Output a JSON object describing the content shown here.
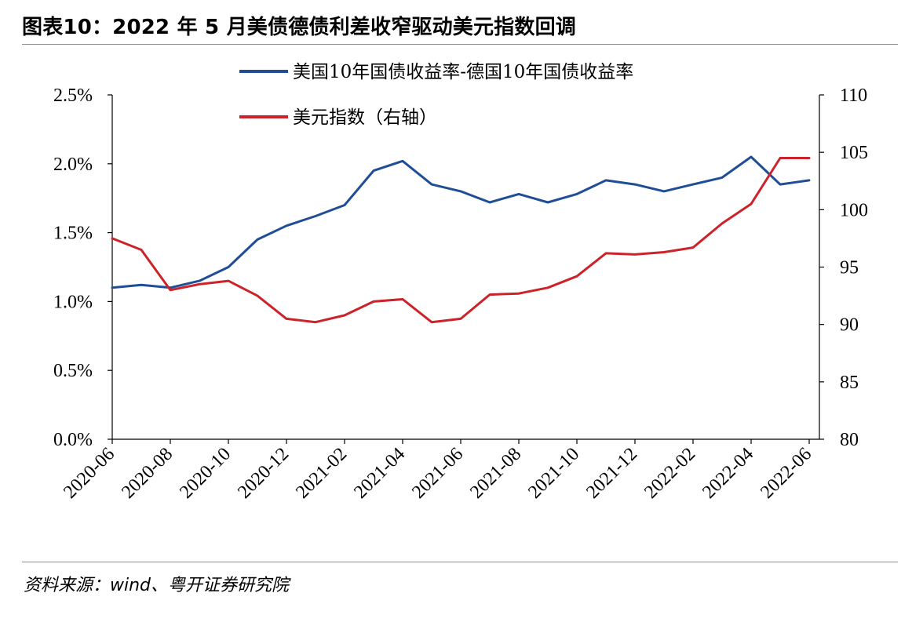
{
  "figure": {
    "title": "图表10：2022 年 5 月美债德债利差收窄驱动美元指数回调",
    "source": "资料来源：wind、粤开证券研究院"
  },
  "chart_data": {
    "type": "line",
    "title": "图表10：2022 年 5 月美债德债利差收窄驱动美元指数回调",
    "x_ticks": [
      "2020-06",
      "2020-08",
      "2020-10",
      "2020-12",
      "2021-02",
      "2021-04",
      "2021-06",
      "2021-08",
      "2021-10",
      "2021-12",
      "2022-02",
      "2022-04",
      "2022-06"
    ],
    "y_left": {
      "ylim": [
        0,
        2.5
      ],
      "ticks": [
        "0.0%",
        "0.5%",
        "1.0%",
        "1.5%",
        "2.0%",
        "2.5%"
      ]
    },
    "y_right": {
      "ylim": [
        80,
        110
      ],
      "ticks": [
        "80",
        "85",
        "90",
        "95",
        "100",
        "105",
        "110"
      ]
    },
    "legend_position": "top",
    "grid": false,
    "x": [
      "2020-06",
      "2020-07",
      "2020-08",
      "2020-09",
      "2020-10",
      "2020-11",
      "2020-12",
      "2021-01",
      "2021-02",
      "2021-03",
      "2021-04",
      "2021-05",
      "2021-06",
      "2021-07",
      "2021-08",
      "2021-09",
      "2021-10",
      "2021-11",
      "2021-12",
      "2022-01",
      "2022-02",
      "2022-03",
      "2022-04",
      "2022-05",
      "2022-06"
    ],
    "series": [
      {
        "name": "美国10年国债收益率-德国10年国债收益率",
        "axis": "left",
        "color": "#1f4e96",
        "values": [
          1.1,
          1.12,
          1.1,
          1.15,
          1.25,
          1.45,
          1.55,
          1.62,
          1.7,
          1.95,
          2.02,
          1.85,
          1.8,
          1.72,
          1.78,
          1.72,
          1.78,
          1.88,
          1.85,
          1.8,
          1.85,
          1.9,
          2.05,
          1.85,
          1.88
        ]
      },
      {
        "name": "美元指数（右轴）",
        "axis": "right",
        "color": "#cc2229",
        "values": [
          97.5,
          96.5,
          93,
          93.5,
          93.8,
          92.5,
          90.5,
          90.2,
          90.8,
          92,
          92.2,
          90.2,
          90.5,
          92.6,
          92.7,
          93.2,
          94.2,
          96.2,
          96.1,
          96.3,
          96.7,
          98.8,
          100.5,
          104.5,
          104.5
        ]
      }
    ]
  }
}
